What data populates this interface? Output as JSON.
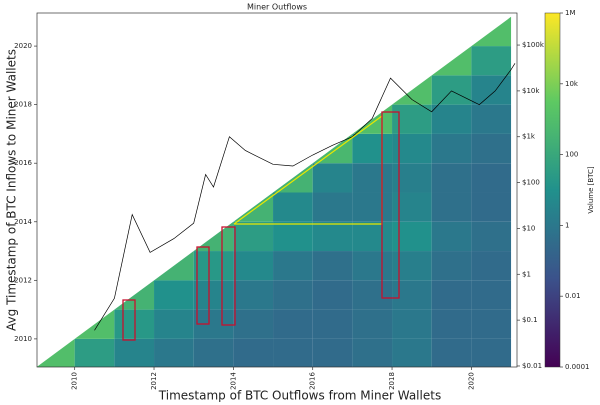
{
  "chart_data": {
    "type": "heatmap",
    "title": "Miner Outflows",
    "x_label": "Timestamp of BTC Outflows from Miner Wallets",
    "y_label": "Avg Timestamp of BTC Inflows to Miner Wallets",
    "colorbar_label": "Volume [BTC]",
    "x_bins": [
      2009,
      2010,
      2011,
      2012,
      2013,
      2014,
      2015,
      2016,
      2017,
      2018,
      2019,
      2020,
      2021
    ],
    "y_bins": [
      2009,
      2010,
      2011,
      2012,
      2013,
      2014,
      2015,
      2016,
      2017,
      2018,
      2019,
      2020,
      2021
    ],
    "values": [
      [
        1000,
        30,
        3,
        1,
        0.5,
        0.3,
        0.3,
        0.3,
        0.5,
        1,
        0.3,
        0.3
      ],
      [
        null,
        1000,
        20,
        3,
        1,
        0.5,
        0.3,
        0.3,
        0.5,
        1,
        0.3,
        0.3
      ],
      [
        null,
        null,
        300,
        10,
        3,
        1,
        0.5,
        0.3,
        0.5,
        1,
        0.3,
        0.3
      ],
      [
        null,
        null,
        null,
        300,
        20,
        5,
        1,
        0.5,
        1,
        2,
        0.5,
        0.3
      ],
      [
        null,
        null,
        null,
        null,
        300,
        30,
        10,
        5,
        5,
        10,
        1,
        0.5
      ],
      [
        null,
        null,
        null,
        null,
        null,
        300,
        5,
        1,
        1,
        3,
        0.5,
        0.3
      ],
      [
        null,
        null,
        null,
        null,
        null,
        null,
        300,
        3,
        1,
        2,
        0.5,
        0.3
      ],
      [
        null,
        null,
        null,
        null,
        null,
        null,
        null,
        500,
        10,
        5,
        1,
        0.5
      ],
      [
        null,
        null,
        null,
        null,
        null,
        null,
        null,
        null,
        1000,
        30,
        3,
        1
      ],
      [
        null,
        null,
        null,
        null,
        null,
        null,
        null,
        null,
        null,
        1000,
        30,
        3
      ],
      [
        null,
        null,
        null,
        null,
        null,
        null,
        null,
        null,
        null,
        null,
        1000,
        30
      ],
      [
        null,
        null,
        null,
        null,
        null,
        null,
        null,
        null,
        null,
        null,
        null,
        1000
      ]
    ],
    "colormap": "viridis",
    "color_scale": "log",
    "clim": [
      0.0001,
      1000000
    ],
    "colorbar_ticks": [
      0.0001,
      0.01,
      1,
      100,
      {
        "value": 10000,
        "label": "10k"
      },
      {
        "value": 1000000,
        "label": "1M"
      }
    ],
    "xlim": [
      2009.05,
      2021.15
    ],
    "ylim": [
      2009.04,
      2021.13
    ],
    "xticks": [
      2010,
      2012,
      2014,
      2016,
      2018,
      2020
    ],
    "yticks": [
      2010,
      2012,
      2014,
      2016,
      2018,
      2020
    ],
    "y2_scale": "log",
    "y2lim": [
      0.0095,
      500000
    ],
    "y2ticks": [
      {
        "value": 0.01,
        "label": "$0.01"
      },
      {
        "value": 0.1,
        "label": "$0.1"
      },
      {
        "value": 1,
        "label": "$1"
      },
      {
        "value": 10,
        "label": "$10"
      },
      {
        "value": 100,
        "label": "$100"
      },
      {
        "value": 1000,
        "label": "$1k"
      },
      {
        "value": 10000,
        "label": "$10k"
      },
      {
        "value": 100000,
        "label": "$100k"
      }
    ],
    "line": {
      "color": "#000000",
      "axis": "y2",
      "x": [
        2010.5,
        2011.0,
        2011.45,
        2011.9,
        2012.5,
        2013.0,
        2013.3,
        2013.5,
        2013.9,
        2014.3,
        2015.0,
        2015.5,
        2016.0,
        2016.5,
        2017.0,
        2017.5,
        2017.96,
        2018.5,
        2019.0,
        2019.5,
        2020.2,
        2020.6,
        2021.0,
        2021.1
      ],
      "values": [
        0.06,
        0.3,
        20,
        3,
        6,
        13,
        150,
        80,
        1000,
        500,
        250,
        230,
        400,
        650,
        1000,
        2500,
        19000,
        6500,
        3500,
        10000,
        5000,
        10000,
        29000,
        40000
      ]
    }
  }
}
